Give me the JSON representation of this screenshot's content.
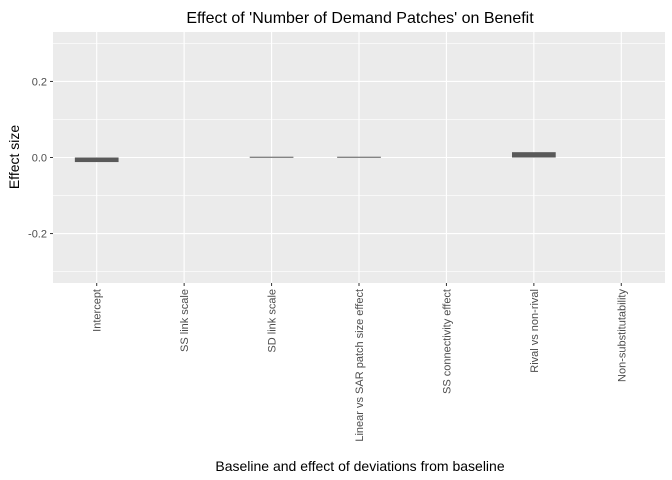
{
  "chart_data": {
    "type": "bar",
    "title": "Effect of 'Number of Demand Patches' on Benefit",
    "xlabel": "Baseline and effect of deviations from baseline",
    "ylabel": "Effect size",
    "categories": [
      "Intercept",
      "SS link scale",
      "SD link scale",
      "Linear vs SAR patch size effect",
      "SS connectivity effect",
      "Rival vs non-rival",
      "Non-substitutability"
    ],
    "values": [
      -0.012,
      0,
      0.002,
      0.002,
      0,
      0.014,
      0
    ],
    "ylim": [
      -0.33,
      0.33
    ],
    "yticks": [
      -0.2,
      0.0,
      0.2
    ],
    "ytick_labels": [
      "-0.2",
      "0.0",
      "0.2"
    ],
    "grid": true,
    "legend": "none",
    "colors": {
      "panel": "#ebebeb",
      "grid": "#ffffff",
      "bar": "#595959",
      "tick": "#333333"
    }
  }
}
